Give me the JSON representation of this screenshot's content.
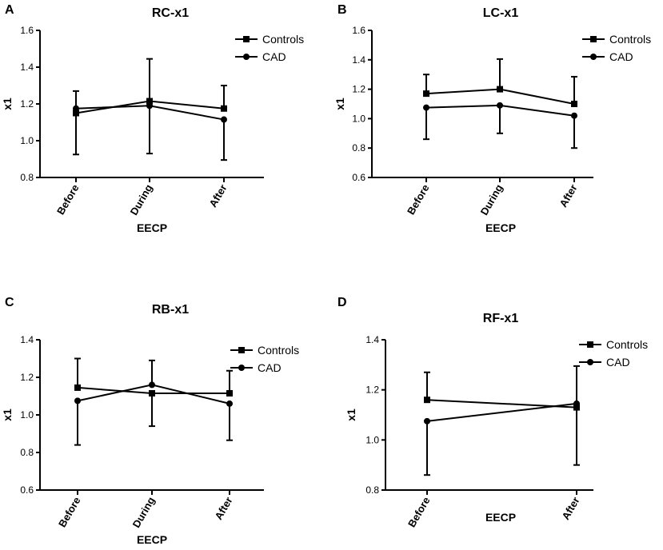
{
  "chart_data": [
    {
      "type": "line",
      "panel_letter": "A",
      "title": "RC-x1",
      "xlabel": "EECP",
      "ylabel": "x1",
      "categories": [
        "Before",
        "During",
        "After"
      ],
      "ylim": [
        0.8,
        1.6
      ],
      "yticks": [
        "0.8",
        "1.0",
        "1.2",
        "1.4",
        "1.6"
      ],
      "legend_position": "top-right",
      "series": [
        {
          "name": "Controls",
          "marker": "square",
          "values": [
            1.15,
            1.215,
            1.175
          ],
          "err_upper": [
            1.27,
            1.445,
            1.3
          ],
          "err_lower": [
            1.15,
            1.215,
            1.175
          ]
        },
        {
          "name": "CAD",
          "marker": "circle",
          "values": [
            1.175,
            1.19,
            1.115
          ],
          "err_upper": [
            1.175,
            1.19,
            1.115
          ],
          "err_lower": [
            0.925,
            0.93,
            0.895
          ]
        }
      ]
    },
    {
      "type": "line",
      "panel_letter": "B",
      "title": "LC-x1",
      "xlabel": "EECP",
      "ylabel": "x1",
      "categories": [
        "Before",
        "During",
        "After"
      ],
      "ylim": [
        0.6,
        1.6
      ],
      "yticks": [
        "0.6",
        "0.8",
        "1.0",
        "1.2",
        "1.4",
        "1.6"
      ],
      "legend_position": "top-right",
      "series": [
        {
          "name": "Controls",
          "marker": "square",
          "values": [
            1.17,
            1.2,
            1.1
          ],
          "err_upper": [
            1.3,
            1.405,
            1.285
          ],
          "err_lower": [
            1.17,
            1.2,
            1.1
          ]
        },
        {
          "name": "CAD",
          "marker": "circle",
          "values": [
            1.075,
            1.09,
            1.02
          ],
          "err_upper": [
            1.075,
            1.09,
            1.02
          ],
          "err_lower": [
            0.86,
            0.9,
            0.8
          ]
        }
      ]
    },
    {
      "type": "line",
      "panel_letter": "C",
      "title": "RB-x1",
      "xlabel": "EECP",
      "ylabel": "x1",
      "categories": [
        "Before",
        "During",
        "After"
      ],
      "ylim": [
        0.6,
        1.4
      ],
      "yticks": [
        "0.6",
        "0.8",
        "1.0",
        "1.2",
        "1.4"
      ],
      "legend_position": "top-right",
      "series": [
        {
          "name": "Controls",
          "marker": "square",
          "values": [
            1.145,
            1.115,
            1.115
          ],
          "err_upper": [
            1.3,
            1.115,
            1.235
          ],
          "err_lower": [
            1.145,
            0.94,
            1.115
          ]
        },
        {
          "name": "CAD",
          "marker": "circle",
          "values": [
            1.075,
            1.16,
            1.06
          ],
          "err_upper": [
            1.075,
            1.29,
            1.06
          ],
          "err_lower": [
            0.84,
            1.16,
            0.865
          ]
        }
      ]
    },
    {
      "type": "line",
      "panel_letter": "D",
      "title": "RF-x1",
      "xlabel": "EECP",
      "ylabel": "x1",
      "categories": [
        "Before",
        "After"
      ],
      "ylim": [
        0.8,
        1.4
      ],
      "yticks": [
        "0.8",
        "1.0",
        "1.2",
        "1.4"
      ],
      "legend_position": "top-right",
      "series": [
        {
          "name": "Controls",
          "marker": "square",
          "values": [
            1.16,
            1.13
          ],
          "err_upper": [
            1.27,
            1.13
          ],
          "err_lower": [
            1.16,
            0.9
          ]
        },
        {
          "name": "CAD",
          "marker": "circle",
          "values": [
            1.075,
            1.145
          ],
          "err_upper": [
            1.075,
            1.295
          ],
          "err_lower": [
            0.86,
            1.145
          ]
        }
      ]
    }
  ]
}
